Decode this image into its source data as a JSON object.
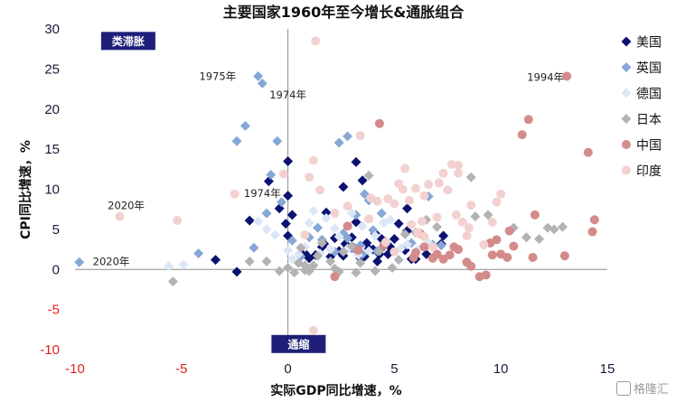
{
  "chart_data": {
    "type": "scatter",
    "title": "主要国家1960年至今增长&通胀组合",
    "xlabel": "实际GDP同比增速，%",
    "ylabel": "CPI同比增速，%",
    "xlim": [
      -10,
      15
    ],
    "ylim": [
      -10,
      30
    ],
    "xticks": [
      -10,
      -5,
      0,
      5,
      10,
      15
    ],
    "yticks": [
      -10,
      -5,
      0,
      5,
      10,
      15,
      20,
      25,
      30
    ],
    "negative_tick_color": "#e02020",
    "legend_position": "right",
    "regions": [
      {
        "label": "类滞胀",
        "bg": "#1f1f7a",
        "color": "#ffffff",
        "x": -7.5,
        "y": 28.5
      },
      {
        "label": "通缩",
        "bg": "#1f1f7a",
        "color": "#ffffff",
        "x": 0.5,
        "y": -9.3
      }
    ],
    "annotations": [
      {
        "text": "1975年",
        "x": -3.3,
        "y": 24.1
      },
      {
        "text": "1974年",
        "x": 0.0,
        "y": 21.8
      },
      {
        "text": "1994年",
        "x": 12.1,
        "y": 24.0
      },
      {
        "text": "2020年",
        "x": -7.6,
        "y": 8.0
      },
      {
        "text": "1974年",
        "x": -1.2,
        "y": 9.5
      },
      {
        "text": "2020年",
        "x": -8.3,
        "y": 1.0
      }
    ],
    "series": [
      {
        "name": "美国",
        "marker": "diamond",
        "color": "#0c1172",
        "points": [
          [
            -3.4,
            1.2
          ],
          [
            -2.4,
            -0.3
          ],
          [
            -1.8,
            6.1
          ],
          [
            -0.9,
            11.0
          ],
          [
            -0.4,
            7.6
          ],
          [
            0,
            13.5
          ],
          [
            0,
            9.2
          ],
          [
            0,
            4.2
          ],
          [
            -0.1,
            5.7
          ],
          [
            0.2,
            6.8
          ],
          [
            0.8,
            2.0
          ],
          [
            1.0,
            1.4
          ],
          [
            1.3,
            1.8
          ],
          [
            1.6,
            2.8
          ],
          [
            1.8,
            7.1
          ],
          [
            2.0,
            1.6
          ],
          [
            2.2,
            3.9
          ],
          [
            2.4,
            2.3
          ],
          [
            2.6,
            1.7
          ],
          [
            2.7,
            3.2
          ],
          [
            2.8,
            2.9
          ],
          [
            3.0,
            4.0
          ],
          [
            3.1,
            2.7
          ],
          [
            3.2,
            5.9
          ],
          [
            3.3,
            2.3
          ],
          [
            3.4,
            1.4
          ],
          [
            3.5,
            11.1
          ],
          [
            3.6,
            1.6
          ],
          [
            3.7,
            3.3
          ],
          [
            3.8,
            2.6
          ],
          [
            4.0,
            2.5
          ],
          [
            4.1,
            4.5
          ],
          [
            4.2,
            1.0
          ],
          [
            4.3,
            1.9
          ],
          [
            4.4,
            3.8
          ],
          [
            4.5,
            2.9
          ],
          [
            4.6,
            3.4
          ],
          [
            4.7,
            1.9
          ],
          [
            4.8,
            2.8
          ],
          [
            5.0,
            3.8
          ],
          [
            5.2,
            5.7
          ],
          [
            5.5,
            2.4
          ],
          [
            5.6,
            7.6
          ],
          [
            5.8,
            1.3
          ],
          [
            6.0,
            1.3
          ],
          [
            6.5,
            1.9
          ],
          [
            7.2,
            3.2
          ],
          [
            7.3,
            4.2
          ],
          [
            2.6,
            10.3
          ],
          [
            3.2,
            13.4
          ],
          [
            5.6,
            4.8
          ],
          [
            1.7,
            3.2
          ]
        ]
      },
      {
        "name": "英国",
        "marker": "diamond",
        "color": "#87a7d6",
        "points": [
          [
            -9.8,
            0.9
          ],
          [
            -4.2,
            2.0
          ],
          [
            -2.4,
            16.0
          ],
          [
            -2.0,
            17.9
          ],
          [
            -1.4,
            24.1
          ],
          [
            -1.2,
            23.2
          ],
          [
            -1.0,
            7.0
          ],
          [
            -0.8,
            11.8
          ],
          [
            -0.5,
            16.0
          ],
          [
            -0.3,
            8.4
          ],
          [
            0.2,
            3.6
          ],
          [
            1.0,
            4.0
          ],
          [
            1.4,
            5.2
          ],
          [
            1.6,
            3.7
          ],
          [
            2.2,
            2.2
          ],
          [
            2.4,
            15.8
          ],
          [
            2.6,
            4.5
          ],
          [
            2.8,
            16.6
          ],
          [
            3.0,
            2.6
          ],
          [
            3.2,
            6.8
          ],
          [
            3.4,
            3.0
          ],
          [
            3.6,
            9.4
          ],
          [
            3.8,
            8.6
          ],
          [
            4.0,
            4.9
          ],
          [
            4.2,
            2.3
          ],
          [
            4.4,
            7.0
          ],
          [
            4.6,
            3.5
          ],
          [
            5.8,
            3.3
          ],
          [
            6.6,
            9.1
          ],
          [
            6.8,
            3.1
          ],
          [
            7.2,
            3.0
          ],
          [
            2.8,
            3.9
          ],
          [
            3.5,
            1.9
          ],
          [
            -1.6,
            2.7
          ],
          [
            0.6,
            1.6
          ]
        ]
      },
      {
        "name": "德国",
        "marker": "diamond",
        "color": "#dce6f6",
        "points": [
          [
            -5.6,
            0.4
          ],
          [
            -4.9,
            0.6
          ],
          [
            -1.4,
            6.0
          ],
          [
            -1.0,
            5.0
          ],
          [
            -0.6,
            4.3
          ],
          [
            0,
            2.4
          ],
          [
            0.5,
            1.9
          ],
          [
            0.8,
            2.8
          ],
          [
            1.0,
            5.8
          ],
          [
            1.2,
            7.3
          ],
          [
            1.5,
            2.0
          ],
          [
            1.8,
            6.4
          ],
          [
            2.0,
            2.5
          ],
          [
            2.2,
            5.1
          ],
          [
            2.4,
            4.1
          ],
          [
            2.8,
            2.6
          ],
          [
            3.0,
            7.0
          ],
          [
            3.3,
            1.8
          ],
          [
            3.5,
            5.4
          ],
          [
            3.8,
            2.3
          ],
          [
            4.1,
            4.2
          ],
          [
            4.5,
            5.8
          ],
          [
            4.8,
            6.2
          ],
          [
            5.3,
            2.6
          ],
          [
            5.6,
            3.1
          ],
          [
            6.1,
            2.5
          ],
          [
            6.6,
            3.3
          ],
          [
            0.2,
            1.3
          ]
        ]
      },
      {
        "name": "日本",
        "marker": "diamond",
        "color": "#b3b3b3",
        "points": [
          [
            -5.4,
            -1.5
          ],
          [
            -1.0,
            1.0
          ],
          [
            -0.4,
            -0.2
          ],
          [
            0,
            0.2
          ],
          [
            0.3,
            -0.4
          ],
          [
            0.5,
            0.8
          ],
          [
            0.6,
            2.7
          ],
          [
            0.8,
            0.5
          ],
          [
            1.0,
            -0.2
          ],
          [
            1.2,
            0.5
          ],
          [
            1.4,
            1.7
          ],
          [
            1.6,
            3.3
          ],
          [
            2.0,
            1.0
          ],
          [
            2.2,
            0.1
          ],
          [
            2.6,
            2.2
          ],
          [
            3.0,
            2.9
          ],
          [
            3.2,
            -0.4
          ],
          [
            3.4,
            0.8
          ],
          [
            3.8,
            11.7
          ],
          [
            4.1,
            -0.2
          ],
          [
            4.3,
            2.3
          ],
          [
            4.6,
            3.4
          ],
          [
            4.9,
            0.2
          ],
          [
            5.2,
            1.2
          ],
          [
            5.5,
            4.4
          ],
          [
            6.0,
            4.6
          ],
          [
            6.5,
            6.2
          ],
          [
            7.0,
            5.3
          ],
          [
            8.6,
            11.5
          ],
          [
            8.8,
            6.6
          ],
          [
            9.4,
            6.8
          ],
          [
            10.6,
            5.2
          ],
          [
            11.2,
            4.0
          ],
          [
            11.8,
            3.8
          ],
          [
            12.2,
            5.2
          ],
          [
            12.5,
            5.0
          ],
          [
            12.9,
            5.3
          ],
          [
            -1.8,
            1.0
          ],
          [
            0.8,
            -0.1
          ],
          [
            2.4,
            -0.3
          ]
        ]
      },
      {
        "name": "中国",
        "marker": "circle",
        "color": "#d48b8b",
        "points": [
          [
            13.1,
            24.1
          ],
          [
            4.3,
            18.2
          ],
          [
            11.3,
            18.7
          ],
          [
            11.0,
            16.8
          ],
          [
            14.1,
            14.6
          ],
          [
            14.4,
            6.2
          ],
          [
            14.3,
            4.7
          ],
          [
            13.0,
            1.7
          ],
          [
            11.6,
            6.8
          ],
          [
            11.5,
            1.5
          ],
          [
            10.6,
            2.9
          ],
          [
            10.4,
            4.8
          ],
          [
            10.3,
            1.5
          ],
          [
            10.0,
            1.9
          ],
          [
            9.8,
            3.7
          ],
          [
            9.6,
            1.8
          ],
          [
            9.5,
            3.3
          ],
          [
            9.3,
            -0.7
          ],
          [
            9.0,
            -0.9
          ],
          [
            8.6,
            0.4
          ],
          [
            8.4,
            0.9
          ],
          [
            8.0,
            2.5
          ],
          [
            7.8,
            2.8
          ],
          [
            7.6,
            1.8
          ],
          [
            7.3,
            1.3
          ],
          [
            7.0,
            1.9
          ],
          [
            6.8,
            1.4
          ],
          [
            6.4,
            2.8
          ],
          [
            6.2,
            4.5
          ],
          [
            6.0,
            2.1
          ],
          [
            5.9,
            1.5
          ],
          [
            2.2,
            -0.9
          ],
          [
            2.8,
            5.4
          ],
          [
            3.3,
            2.4
          ],
          [
            4.5,
            3.0
          ]
        ]
      },
      {
        "name": "印度",
        "marker": "circle",
        "color": "#f3d1d1",
        "points": [
          [
            1.3,
            28.5
          ],
          [
            1.2,
            13.6
          ],
          [
            -7.9,
            6.6
          ],
          [
            -5.2,
            6.1
          ],
          [
            -2.5,
            9.4
          ],
          [
            -0.2,
            11.9
          ],
          [
            0.8,
            4.3
          ],
          [
            1.0,
            11.5
          ],
          [
            1.5,
            9.9
          ],
          [
            2.2,
            7.0
          ],
          [
            2.8,
            7.9
          ],
          [
            3.4,
            16.7
          ],
          [
            3.8,
            6.3
          ],
          [
            3.9,
            8.9
          ],
          [
            4.2,
            8.5
          ],
          [
            4.6,
            3.4
          ],
          [
            4.7,
            8.8
          ],
          [
            5.0,
            8.2
          ],
          [
            5.2,
            10.7
          ],
          [
            5.4,
            10.0
          ],
          [
            5.5,
            12.6
          ],
          [
            5.7,
            8.6
          ],
          [
            6.0,
            10.1
          ],
          [
            6.1,
            4.6
          ],
          [
            6.4,
            9.2
          ],
          [
            6.4,
            4.1
          ],
          [
            6.6,
            10.6
          ],
          [
            6.8,
            2.8
          ],
          [
            7.1,
            10.8
          ],
          [
            7.3,
            12.0
          ],
          [
            7.5,
            9.9
          ],
          [
            7.7,
            13.1
          ],
          [
            7.9,
            6.8
          ],
          [
            8.0,
            12.0
          ],
          [
            8.2,
            5.9
          ],
          [
            8.4,
            4.2
          ],
          [
            8.6,
            8.0
          ],
          [
            9.2,
            3.1
          ],
          [
            9.6,
            5.9
          ],
          [
            9.8,
            8.4
          ],
          [
            10.0,
            9.4
          ],
          [
            8.0,
            13.0
          ],
          [
            1.2,
            -7.6
          ],
          [
            5.0,
            2.2
          ],
          [
            7.0,
            6.5
          ],
          [
            8.5,
            5.2
          ],
          [
            6.3,
            6.0
          ],
          [
            5.8,
            5.6
          ]
        ]
      }
    ]
  },
  "watermark": "格隆汇"
}
